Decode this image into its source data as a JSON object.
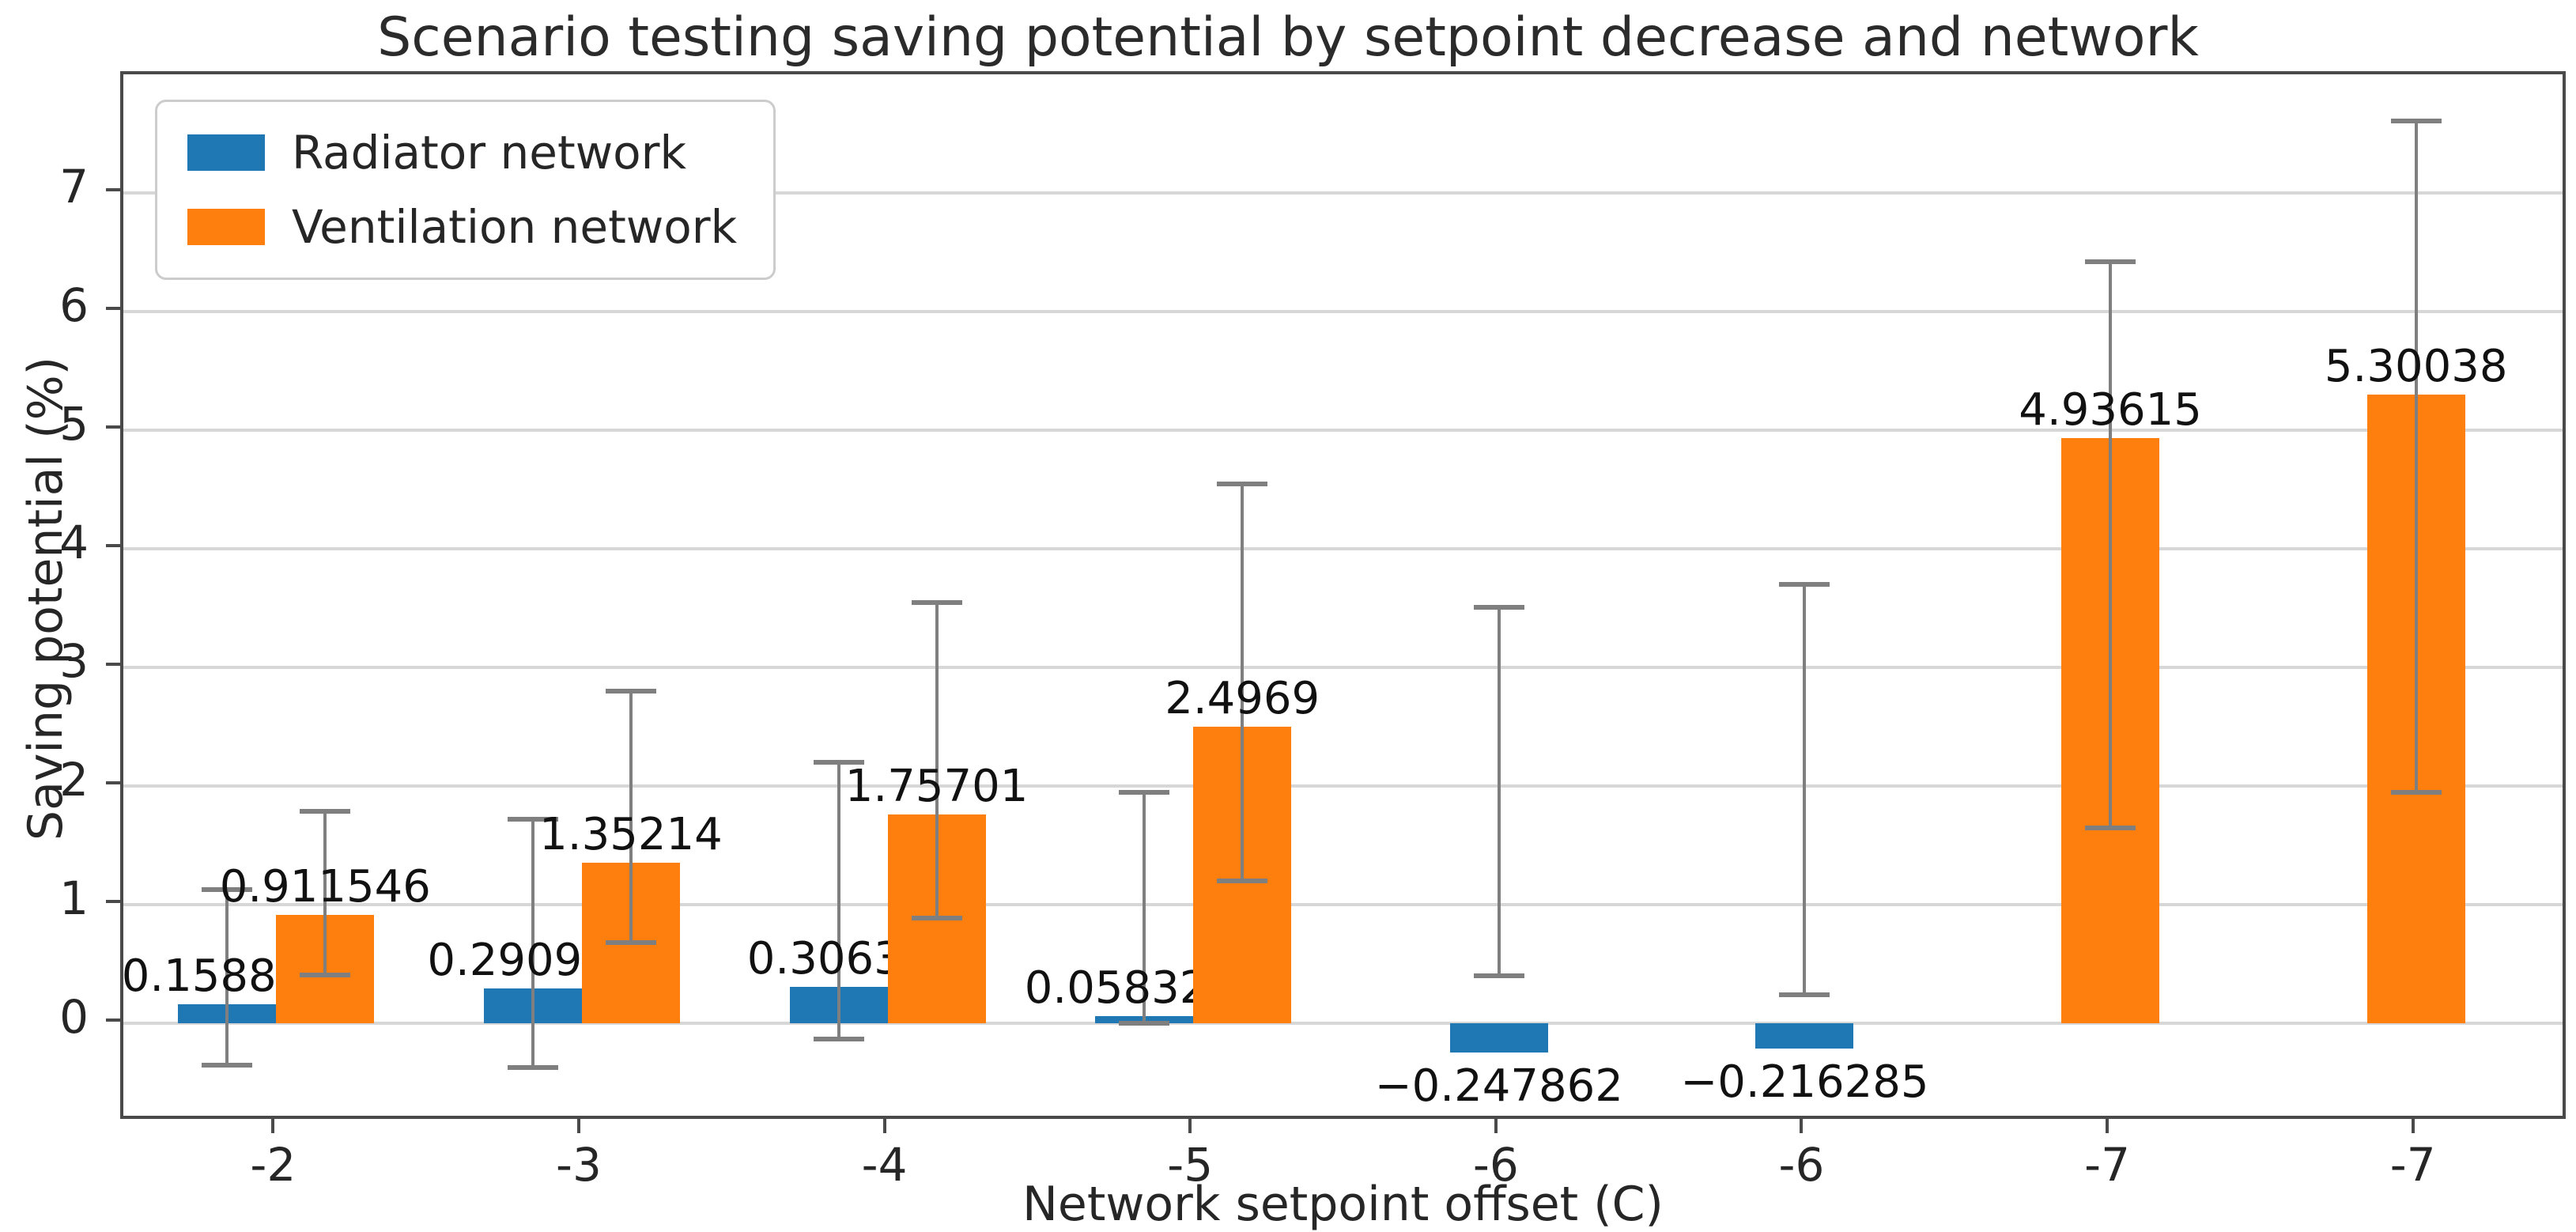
{
  "chart_data": {
    "type": "bar",
    "title": "Scenario testing saving potential by setpoint decrease and network",
    "xlabel": "Network setpoint offset (C)",
    "ylabel": "Saving potential (%)",
    "categories": [
      "-2",
      "-3",
      "-4",
      "-5",
      "-6",
      "-6",
      "-7",
      "-7"
    ],
    "yticks": [
      0,
      1,
      2,
      3,
      4,
      5,
      6,
      7
    ],
    "ylim": [
      -0.833,
      8.0
    ],
    "grid": true,
    "legend_position": "upper-left",
    "error_bar_color": "#7f7f7f",
    "series": [
      {
        "name": "Radiator network",
        "color": "#1f77b4",
        "values": [
          0.158868,
          0.290966,
          0.30633,
          0.0583283,
          -0.247862,
          -0.216285,
          null,
          null
        ],
        "labels": [
          "0.158868",
          "0.290966",
          "0.30633",
          "0.0583283",
          "−0.247862",
          "−0.216285",
          null,
          null
        ],
        "error_low": [
          -0.35,
          -0.37,
          -0.13,
          0.0,
          0.4,
          0.24,
          null,
          null
        ],
        "error_high": [
          1.13,
          1.72,
          2.2,
          1.95,
          3.51,
          3.7,
          null,
          null
        ]
      },
      {
        "name": "Ventilation network",
        "color": "#ff7f0e",
        "values": [
          0.911546,
          1.35214,
          1.75701,
          2.4969,
          null,
          null,
          4.93615,
          5.30038
        ],
        "labels": [
          "0.911546",
          "1.35214",
          "1.75701",
          "2.4969",
          null,
          null,
          "4.93615",
          "5.30038"
        ],
        "error_low": [
          0.41,
          0.68,
          0.89,
          1.2,
          null,
          null,
          1.65,
          1.95
        ],
        "error_high": [
          1.79,
          2.8,
          3.55,
          4.55,
          null,
          null,
          6.42,
          7.61
        ]
      }
    ]
  }
}
